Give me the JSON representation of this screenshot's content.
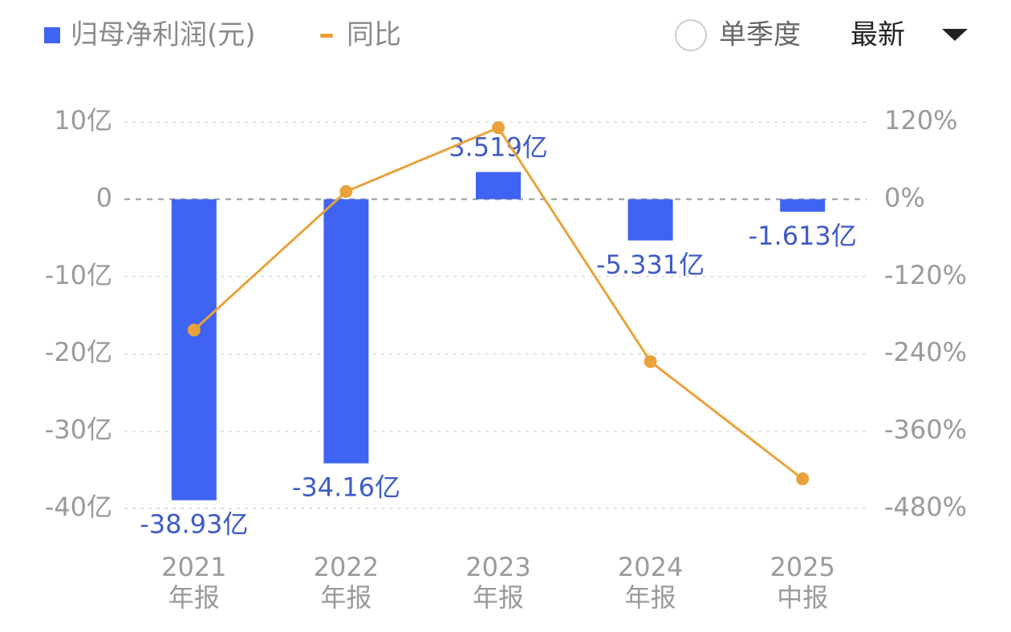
{
  "controls": {
    "toggle": "单季度",
    "dropdown": "最新"
  },
  "chart_data": {
    "type": "bar-line",
    "categories": [
      [
        "2021",
        "年报"
      ],
      [
        "2022",
        "年报"
      ],
      [
        "2023",
        "年报"
      ],
      [
        "2024",
        "年报"
      ],
      [
        "2025",
        "中报"
      ]
    ],
    "series": [
      {
        "name": "归母净利润(元)",
        "color": "#3f63f2",
        "values": [
          -38.93,
          -34.16,
          3.519,
          -5.331,
          -1.613
        ],
        "value_labels": [
          "-38.93亿",
          "-34.16亿",
          "3.519亿",
          "-5.331亿",
          "-1.613亿"
        ]
      },
      {
        "name": "同比",
        "color": "#e9a23b",
        "axis": "y2",
        "values": [
          -203,
          12,
          111,
          -252,
          -434
        ]
      }
    ],
    "ylim": [
      -40,
      10
    ],
    "yticks": [
      {
        "value": 10,
        "label": "10亿"
      },
      0,
      {
        "value": -10,
        "label": "-10亿"
      },
      {
        "value": -20,
        "label": "-20亿"
      },
      {
        "value": -30,
        "label": "-30亿"
      },
      {
        "value": -40,
        "label": "-40亿"
      }
    ],
    "y2lim": [
      -480,
      120
    ],
    "y2ticks": [
      {
        "value": 120,
        "label": "120%"
      },
      {
        "value": 0,
        "label": "0%"
      },
      {
        "value": -120,
        "label": "-120%"
      },
      {
        "value": -240,
        "label": "-240%"
      },
      {
        "value": -360,
        "label": "-360%"
      },
      {
        "value": -480,
        "label": "-480%"
      }
    ],
    "grid": true
  }
}
